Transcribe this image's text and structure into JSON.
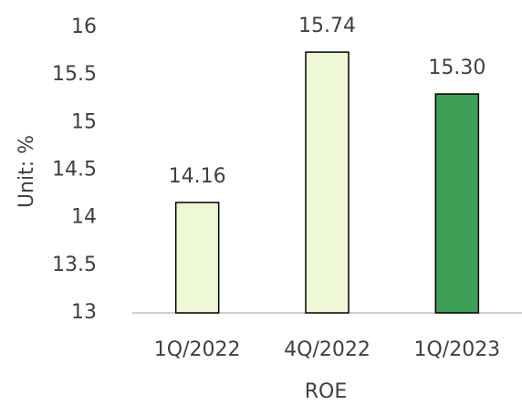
{
  "chart_data": {
    "type": "bar",
    "categories": [
      "1Q/2022",
      "4Q/2022",
      "1Q/2023"
    ],
    "values": [
      14.16,
      15.74,
      15.3
    ],
    "value_labels": [
      "14.16",
      "15.74",
      "15.30"
    ],
    "colors": [
      "#eef7d6",
      "#eef7d6",
      "#3d9e56"
    ],
    "ylabel": "Unit: %",
    "xlabel": "ROE",
    "ylim": [
      13,
      16
    ],
    "yticks": [
      13,
      13.5,
      14,
      14.5,
      15,
      15.5,
      16
    ],
    "grid": false
  }
}
